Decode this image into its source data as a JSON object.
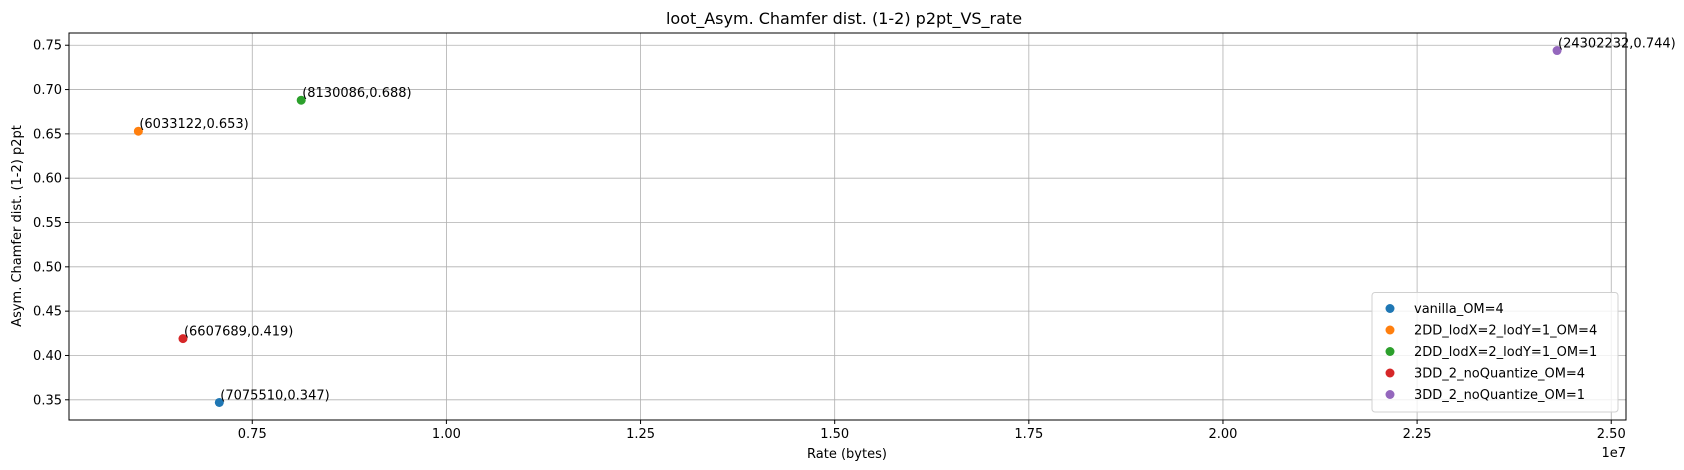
{
  "chart_data": {
    "type": "scatter",
    "title": "loot_Asym. Chamfer dist. (1-2) p2pt_VS_rate",
    "xlabel": "Rate (bytes)",
    "ylabel": "Asym. Chamfer dist. (1-2) p2pt",
    "x_offset_label": "1e7",
    "x_scale": 10000000,
    "xlim": [
      5140000,
      25190000
    ],
    "ylim": [
      0.3272,
      0.7638
    ],
    "x_ticks": [
      {
        "value": 7500000,
        "label": "0.75"
      },
      {
        "value": 10000000,
        "label": "1.00"
      },
      {
        "value": 12500000,
        "label": "1.25"
      },
      {
        "value": 15000000,
        "label": "1.50"
      },
      {
        "value": 17500000,
        "label": "1.75"
      },
      {
        "value": 20000000,
        "label": "2.00"
      },
      {
        "value": 22500000,
        "label": "2.25"
      },
      {
        "value": 25000000,
        "label": "2.50"
      }
    ],
    "y_ticks": [
      {
        "value": 0.35,
        "label": "0.35"
      },
      {
        "value": 0.4,
        "label": "0.40"
      },
      {
        "value": 0.45,
        "label": "0.45"
      },
      {
        "value": 0.5,
        "label": "0.50"
      },
      {
        "value": 0.55,
        "label": "0.55"
      },
      {
        "value": 0.6,
        "label": "0.60"
      },
      {
        "value": 0.65,
        "label": "0.65"
      },
      {
        "value": 0.7,
        "label": "0.70"
      },
      {
        "value": 0.75,
        "label": "0.75"
      }
    ],
    "grid": true,
    "legend_position": "lower-right",
    "series": [
      {
        "name": "vanilla_OM=4",
        "color": "#1f77b4",
        "points": [
          {
            "x": 7075510,
            "y": 0.347,
            "label": "(7075510,0.347)"
          }
        ]
      },
      {
        "name": "2DD_lodX=2_lodY=1_OM=4",
        "color": "#ff7f0e",
        "points": [
          {
            "x": 6033122,
            "y": 0.653,
            "label": "(6033122,0.653)"
          }
        ]
      },
      {
        "name": "2DD_lodX=2_lodY=1_OM=1",
        "color": "#2ca02c",
        "points": [
          {
            "x": 8130086,
            "y": 0.688,
            "label": "(8130086,0.688)"
          }
        ]
      },
      {
        "name": "3DD_2_noQuantize_OM=4",
        "color": "#d62728",
        "points": [
          {
            "x": 6607689,
            "y": 0.419,
            "label": "(6607689,0.419)"
          }
        ]
      },
      {
        "name": "3DD_2_noQuantize_OM=1",
        "color": "#9467bd",
        "points": [
          {
            "x": 24302232,
            "y": 0.744,
            "label": "(24302232,0.744)"
          }
        ]
      }
    ]
  }
}
